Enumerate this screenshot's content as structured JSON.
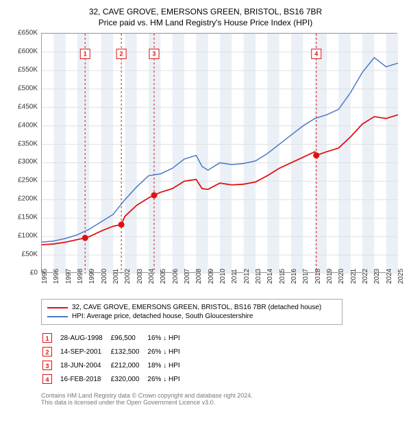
{
  "title": "32, CAVE GROVE, EMERSONS GREEN, BRISTOL, BS16 7BR",
  "subtitle": "Price paid vs. HM Land Registry's House Price Index (HPI)",
  "chart": {
    "type": "line",
    "background_color": "#ffffff",
    "grid_color": "#e0e0e0",
    "band_color": "#eaf0f6",
    "xlim": [
      1995,
      2025
    ],
    "ylim": [
      0,
      650000
    ],
    "ytick_step": 50000,
    "ylabel_prefix": "£",
    "yticks": [
      0,
      50000,
      100000,
      150000,
      200000,
      250000,
      300000,
      350000,
      400000,
      450000,
      500000,
      550000,
      600000,
      650000
    ],
    "xticks": [
      1995,
      1996,
      1997,
      1998,
      1999,
      2000,
      2001,
      2002,
      2003,
      2004,
      2005,
      2006,
      2007,
      2008,
      2009,
      2010,
      2011,
      2012,
      2013,
      2014,
      2015,
      2016,
      2017,
      2018,
      2019,
      2020,
      2021,
      2022,
      2023,
      2024,
      2025
    ],
    "series": [
      {
        "name": "32, CAVE GROVE, EMERSONS GREEN, BRISTOL, BS16 7BR (detached house)",
        "color": "#e01010",
        "line_width": 1.8,
        "values": [
          [
            1995,
            78000
          ],
          [
            1996,
            80000
          ],
          [
            1997,
            85000
          ],
          [
            1998,
            92000
          ],
          [
            1998.65,
            96500
          ],
          [
            1999,
            100000
          ],
          [
            2000,
            115000
          ],
          [
            2001,
            128000
          ],
          [
            2001.7,
            132500
          ],
          [
            2002,
            155000
          ],
          [
            2003,
            185000
          ],
          [
            2004,
            205000
          ],
          [
            2004.46,
            212000
          ],
          [
            2005,
            220000
          ],
          [
            2006,
            230000
          ],
          [
            2007,
            250000
          ],
          [
            2008,
            255000
          ],
          [
            2008.5,
            230000
          ],
          [
            2009,
            228000
          ],
          [
            2010,
            245000
          ],
          [
            2011,
            240000
          ],
          [
            2012,
            242000
          ],
          [
            2013,
            248000
          ],
          [
            2014,
            265000
          ],
          [
            2015,
            285000
          ],
          [
            2016,
            300000
          ],
          [
            2017,
            315000
          ],
          [
            2018,
            330000
          ],
          [
            2018.12,
            320000
          ],
          [
            2019,
            330000
          ],
          [
            2020,
            340000
          ],
          [
            2021,
            370000
          ],
          [
            2022,
            405000
          ],
          [
            2023,
            425000
          ],
          [
            2024,
            420000
          ],
          [
            2025,
            430000
          ]
        ]
      },
      {
        "name": "HPI: Average price, detached house, South Gloucestershire",
        "color": "#4a76c8",
        "line_width": 1.5,
        "values": [
          [
            1995,
            85000
          ],
          [
            1996,
            88000
          ],
          [
            1997,
            95000
          ],
          [
            1998,
            105000
          ],
          [
            1999,
            120000
          ],
          [
            2000,
            140000
          ],
          [
            2001,
            160000
          ],
          [
            2002,
            200000
          ],
          [
            2003,
            235000
          ],
          [
            2004,
            265000
          ],
          [
            2005,
            270000
          ],
          [
            2006,
            285000
          ],
          [
            2007,
            310000
          ],
          [
            2008,
            320000
          ],
          [
            2008.5,
            290000
          ],
          [
            2009,
            280000
          ],
          [
            2010,
            300000
          ],
          [
            2011,
            295000
          ],
          [
            2012,
            298000
          ],
          [
            2013,
            305000
          ],
          [
            2014,
            325000
          ],
          [
            2015,
            350000
          ],
          [
            2016,
            375000
          ],
          [
            2017,
            400000
          ],
          [
            2018,
            420000
          ],
          [
            2019,
            430000
          ],
          [
            2020,
            445000
          ],
          [
            2021,
            490000
          ],
          [
            2022,
            545000
          ],
          [
            2023,
            585000
          ],
          [
            2024,
            560000
          ],
          [
            2025,
            570000
          ]
        ]
      }
    ],
    "event_line_color": "#e01010",
    "event_line_dash": "3,3",
    "events": [
      {
        "num": "1",
        "date": "28-AUG-1998",
        "x": 1998.65,
        "price": "£96,500",
        "pct": "16%",
        "dir": "↓",
        "cmp": "HPI",
        "marker_y": 595000
      },
      {
        "num": "2",
        "date": "14-SEP-2001",
        "x": 2001.7,
        "price": "£132,500",
        "pct": "26%",
        "dir": "↓",
        "cmp": "HPI",
        "marker_y": 595000
      },
      {
        "num": "3",
        "date": "18-JUN-2004",
        "x": 2004.46,
        "price": "£212,000",
        "pct": "18%",
        "dir": "↓",
        "cmp": "HPI",
        "marker_y": 595000
      },
      {
        "num": "4",
        "date": "16-FEB-2018",
        "x": 2018.12,
        "price": "£320,000",
        "pct": "26%",
        "dir": "↓",
        "cmp": "HPI",
        "marker_y": 595000
      }
    ],
    "sale_marker_color": "#e01010",
    "sale_marker_radius": 4.5
  },
  "footer_line1": "Contains HM Land Registry data © Crown copyright and database right 2024.",
  "footer_line2": "This data is licensed under the Open Government Licence v3.0."
}
